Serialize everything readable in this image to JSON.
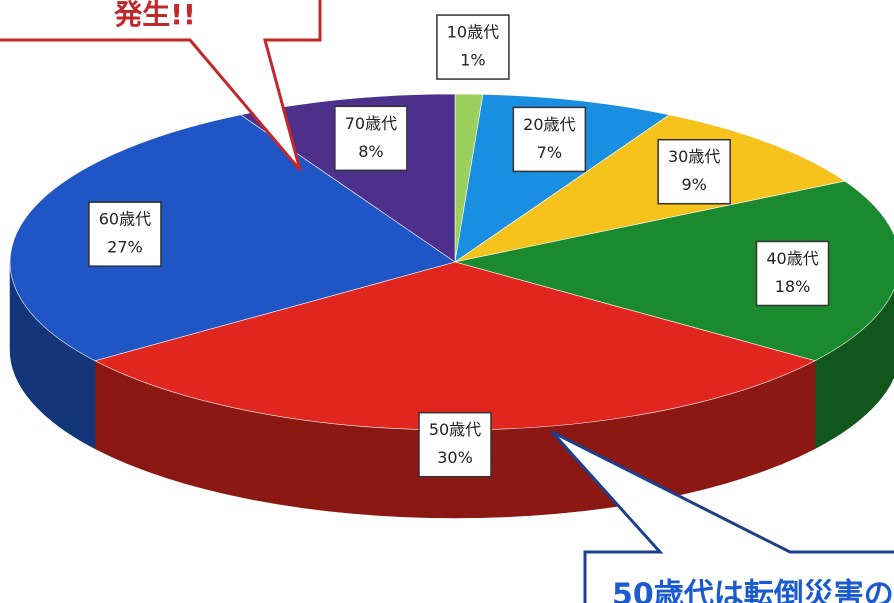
{
  "chart_data": {
    "type": "pie",
    "categories": [
      "10歳代",
      "20歳代",
      "30歳代",
      "40歳代",
      "50歳代",
      "60歳代",
      "70歳代"
    ],
    "values": [
      1,
      7,
      9,
      18,
      30,
      27,
      8
    ],
    "value_labels": [
      "1%",
      "7%",
      "9%",
      "18%",
      "30%",
      "27%",
      "8%"
    ],
    "colors": [
      "#9ccf5e",
      "#1a8ee0",
      "#f6c21c",
      "#1b8a2e",
      "#e0261f",
      "#1f55c4",
      "#4d2f8c"
    ],
    "annotations": [
      "発生!!",
      "50歳代は転倒災害の"
    ]
  }
}
